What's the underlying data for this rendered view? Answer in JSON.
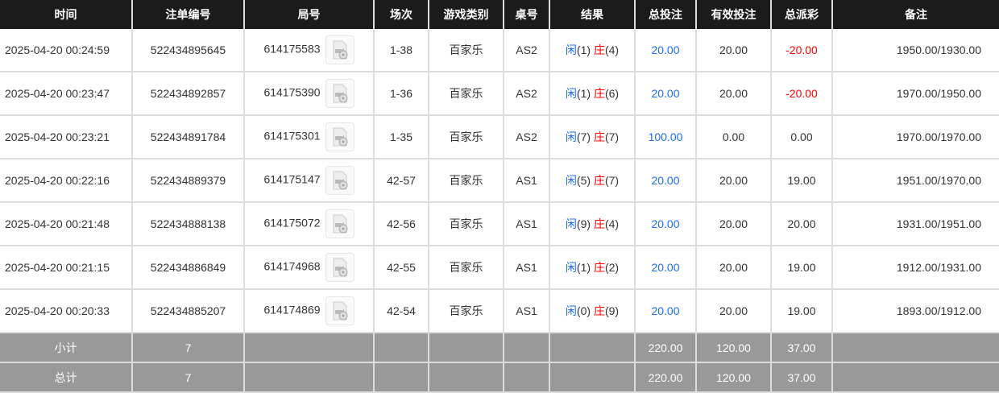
{
  "headers": [
    "时间",
    "注单编号",
    "局号",
    "场次",
    "游戏类别",
    "桌号",
    "结果",
    "总投注",
    "有效投注",
    "总派彩",
    "备注"
  ],
  "rows": [
    {
      "time": "2025-04-20 00:24:59",
      "bet_id": "522434895645",
      "round": "614175583",
      "shoe": "1-38",
      "game": "百家乐",
      "table": "AS2",
      "player": "闲",
      "player_pts": "(1)",
      "banker": "庄",
      "banker_pts": "(4)",
      "total_bet": "20.00",
      "valid_bet": "20.00",
      "payout": "-20.00",
      "payout_neg": true,
      "remark": "1950.00/1930.00"
    },
    {
      "time": "2025-04-20 00:23:47",
      "bet_id": "522434892857",
      "round": "614175390",
      "shoe": "1-36",
      "game": "百家乐",
      "table": "AS2",
      "player": "闲",
      "player_pts": "(1)",
      "banker": "庄",
      "banker_pts": "(6)",
      "total_bet": "20.00",
      "valid_bet": "20.00",
      "payout": "-20.00",
      "payout_neg": true,
      "remark": "1970.00/1950.00"
    },
    {
      "time": "2025-04-20 00:23:21",
      "bet_id": "522434891784",
      "round": "614175301",
      "shoe": "1-35",
      "game": "百家乐",
      "table": "AS2",
      "player": "闲",
      "player_pts": "(7)",
      "banker": "庄",
      "banker_pts": "(7)",
      "total_bet": "100.00",
      "valid_bet": "0.00",
      "payout": "0.00",
      "payout_neg": false,
      "remark": "1970.00/1970.00"
    },
    {
      "time": "2025-04-20 00:22:16",
      "bet_id": "522434889379",
      "round": "614175147",
      "shoe": "42-57",
      "game": "百家乐",
      "table": "AS1",
      "player": "闲",
      "player_pts": "(5)",
      "banker": "庄",
      "banker_pts": "(7)",
      "total_bet": "20.00",
      "valid_bet": "20.00",
      "payout": "19.00",
      "payout_neg": false,
      "remark": "1951.00/1970.00"
    },
    {
      "time": "2025-04-20 00:21:48",
      "bet_id": "522434888138",
      "round": "614175072",
      "shoe": "42-56",
      "game": "百家乐",
      "table": "AS1",
      "player": "闲",
      "player_pts": "(9)",
      "banker": "庄",
      "banker_pts": "(4)",
      "total_bet": "20.00",
      "valid_bet": "20.00",
      "payout": "20.00",
      "payout_neg": false,
      "remark": "1931.00/1951.00"
    },
    {
      "time": "2025-04-20 00:21:15",
      "bet_id": "522434886849",
      "round": "614174968",
      "shoe": "42-55",
      "game": "百家乐",
      "table": "AS1",
      "player": "闲",
      "player_pts": "(1)",
      "banker": "庄",
      "banker_pts": "(2)",
      "total_bet": "20.00",
      "valid_bet": "20.00",
      "payout": "19.00",
      "payout_neg": false,
      "remark": "1912.00/1931.00"
    },
    {
      "time": "2025-04-20 00:20:33",
      "bet_id": "522434885207",
      "round": "614174869",
      "shoe": "42-54",
      "game": "百家乐",
      "table": "AS1",
      "player": "闲",
      "player_pts": "(0)",
      "banker": "庄",
      "banker_pts": "(9)",
      "total_bet": "20.00",
      "valid_bet": "20.00",
      "payout": "19.00",
      "payout_neg": false,
      "remark": "1893.00/1912.00"
    }
  ],
  "footer": [
    {
      "label": "小计",
      "count": "7",
      "total_bet": "220.00",
      "valid_bet": "120.00",
      "payout": "37.00"
    },
    {
      "label": "总计",
      "count": "7",
      "total_bet": "220.00",
      "valid_bet": "120.00",
      "payout": "37.00"
    }
  ],
  "colors": {
    "player": "#1e6cf5",
    "banker": "#ff0000",
    "header_bg": "#1b1b1b",
    "footer_bg": "#999999"
  },
  "icons": {
    "replay": "video-replay-icon"
  }
}
